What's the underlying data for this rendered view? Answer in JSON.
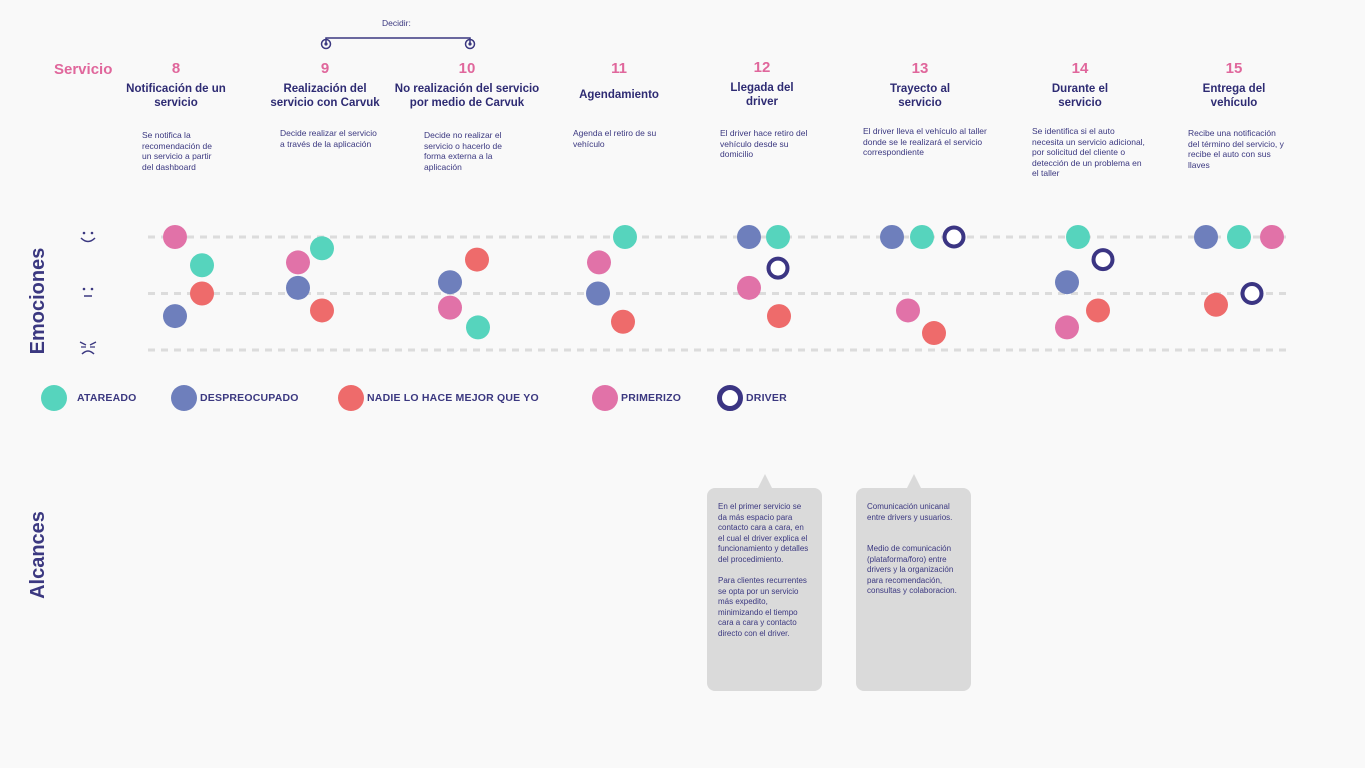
{
  "header": {
    "section_label": "Servicio",
    "decide_label": "Decidir:"
  },
  "side_labels": {
    "emotions": "Emociones",
    "reach": "Alcances"
  },
  "colors": {
    "atareado": "#56d4bd",
    "despreocupado": "#6e7fbc",
    "nadie": "#ee6b6b",
    "primerizo": "#e172a8",
    "driver": "#3b3583"
  },
  "stages": [
    {
      "num": "8",
      "title": "Notificación de un servicio",
      "desc": "Se notifica la recomendación de un servicio a partir del dashboard"
    },
    {
      "num": "9",
      "title": "Realización del servicio con Carvuk",
      "desc": "Decide realizar el servicio a través de la aplicación"
    },
    {
      "num": "10",
      "title": "No realización del servicio por medio de Carvuk",
      "desc": "Decide no realizar el servicio o hacerlo de forma externa a la aplicación"
    },
    {
      "num": "11",
      "title": "Agendamiento",
      "desc": "Agenda el retiro de su vehículo"
    },
    {
      "num": "12",
      "title": "Llegada del driver",
      "desc": "El driver hace retiro del vehículo desde su domicilio"
    },
    {
      "num": "13",
      "title": "Trayecto al servicio",
      "desc": "El driver lleva el vehículo al taller donde se le realizará el servicio correspondiente"
    },
    {
      "num": "14",
      "title": "Durante el servicio",
      "desc": "Se identifica si el auto necesita un servicio adicional, por solicitud del cliente o detección de un problema en el taller"
    },
    {
      "num": "15",
      "title": "Entrega del vehículo",
      "desc": "Recibe una notificación del término del servicio, y recibe el auto con sus llaves"
    }
  ],
  "emotion_levels": [
    "happy-face-icon",
    "neutral-face-icon",
    "sad-face-icon"
  ],
  "chart_data": {
    "type": "scatter",
    "x_categories": [
      "8",
      "9",
      "10",
      "11",
      "12",
      "13",
      "14",
      "15"
    ],
    "y_levels": [
      "feliz",
      "neutral",
      "triste"
    ],
    "y_range": [
      0,
      2
    ],
    "series": [
      {
        "name": "ATAREADO",
        "color": "#56d4bd",
        "points": [
          {
            "x": "8",
            "y": 1.5
          },
          {
            "x": "9",
            "y": 1.8
          },
          {
            "x": "10",
            "y": 0.4
          },
          {
            "x": "11",
            "y": 2.0
          },
          {
            "x": "12",
            "y": 2.0
          },
          {
            "x": "13",
            "y": 2.0
          },
          {
            "x": "14",
            "y": 2.0
          },
          {
            "x": "15",
            "y": 2.0
          }
        ]
      },
      {
        "name": "DESPREOCUPADO",
        "color": "#6e7fbc",
        "points": [
          {
            "x": "8",
            "y": 0.6
          },
          {
            "x": "9",
            "y": 1.1
          },
          {
            "x": "10",
            "y": 1.2
          },
          {
            "x": "11",
            "y": 1.0
          },
          {
            "x": "12",
            "y": 2.0
          },
          {
            "x": "13",
            "y": 2.0
          },
          {
            "x": "14",
            "y": 1.2
          },
          {
            "x": "15",
            "y": 2.0
          }
        ]
      },
      {
        "name": "NADIE LO HACE MEJOR QUE YO",
        "color": "#ee6b6b",
        "points": [
          {
            "x": "8",
            "y": 1.0
          },
          {
            "x": "9",
            "y": 0.7
          },
          {
            "x": "10",
            "y": 1.6
          },
          {
            "x": "11",
            "y": 0.5
          },
          {
            "x": "12",
            "y": 0.6
          },
          {
            "x": "13",
            "y": 0.3
          },
          {
            "x": "14",
            "y": 0.7
          },
          {
            "x": "15",
            "y": 0.8
          }
        ]
      },
      {
        "name": "PRIMERIZO",
        "color": "#e172a8",
        "points": [
          {
            "x": "8",
            "y": 2.0
          },
          {
            "x": "9",
            "y": 1.55
          },
          {
            "x": "10",
            "y": 0.75
          },
          {
            "x": "11",
            "y": 1.55
          },
          {
            "x": "12",
            "y": 1.1
          },
          {
            "x": "13",
            "y": 0.7
          },
          {
            "x": "14",
            "y": 0.4
          },
          {
            "x": "15",
            "y": 2.0
          }
        ]
      },
      {
        "name": "DRIVER",
        "color": "#3b3583",
        "points": [
          {
            "x": "12",
            "y": 1.45
          },
          {
            "x": "13",
            "y": 2.0
          },
          {
            "x": "14",
            "y": 1.6
          },
          {
            "x": "15",
            "y": 1.0
          }
        ]
      }
    ]
  },
  "legend": [
    {
      "label": "ATAREADO",
      "color": "#56d4bd",
      "kind": "fill"
    },
    {
      "label": "DESPREOCUPADO",
      "color": "#6e7fbc",
      "kind": "fill"
    },
    {
      "label": "NADIE LO HACE MEJOR QUE YO",
      "color": "#ee6b6b",
      "kind": "fill"
    },
    {
      "label": "PRIMERIZO",
      "color": "#e172a8",
      "kind": "fill"
    },
    {
      "label": "DRIVER",
      "color": "#3b3583",
      "kind": "ring"
    }
  ],
  "callouts": {
    "stage12": {
      "p1": "En el primer servicio se da más espacio para contacto cara a cara, en el cual el driver explica el funcionamiento y detalles del procedimiento.",
      "p2": "Para clientes recurrentes se opta por un servicio más expedito, minimizando el tiempo cara a cara y contacto directo con el driver."
    },
    "stage13": {
      "p1": "Comunicación unicanal entre drivers y usuarios.",
      "p2": "Medio de comunicación (plataforma/foro) entre drivers y la organización para recomendación, consultas y colaboracion."
    }
  }
}
